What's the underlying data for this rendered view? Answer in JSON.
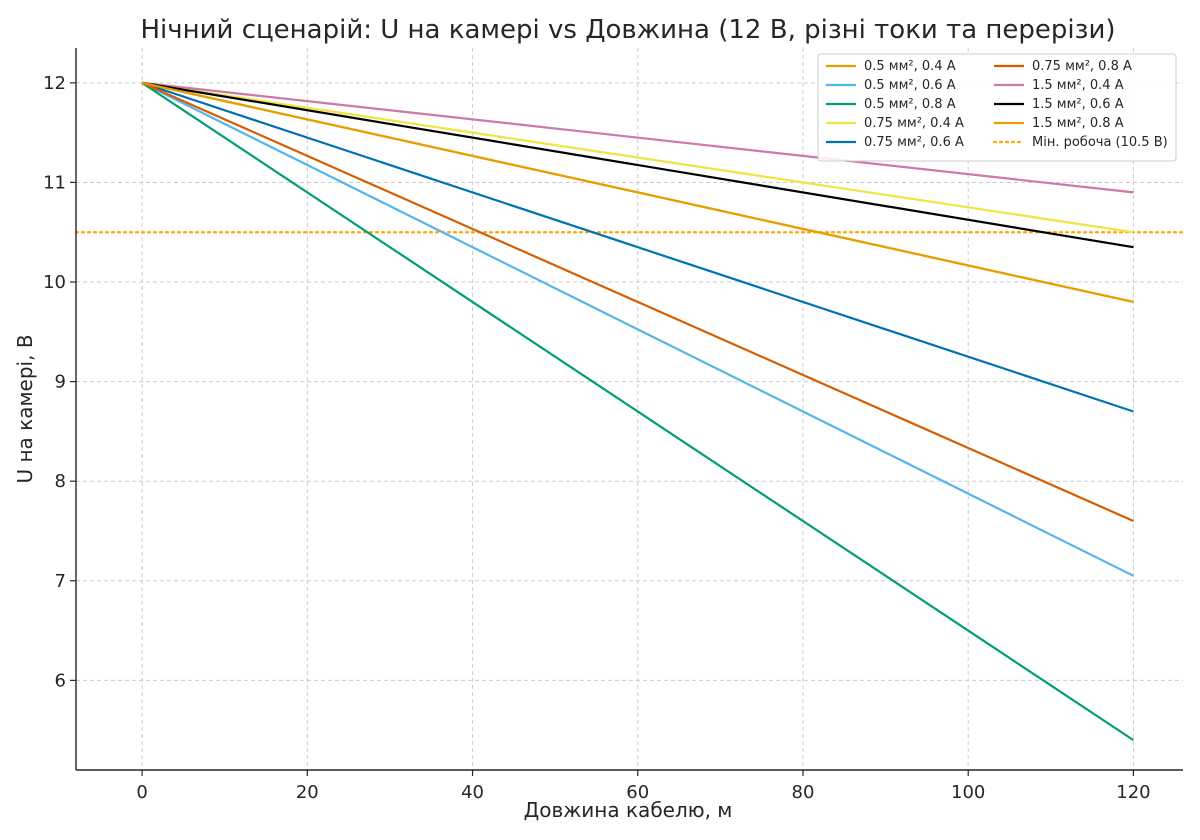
{
  "chart_data": {
    "type": "line",
    "title": "Нічний сценарій: U на камері vs Довжина (12 В, різні токи та перерізи)",
    "xlabel": "Довжина кабелю, м",
    "ylabel": "U на камері, В",
    "xlim": [
      -8,
      126
    ],
    "ylim": [
      5.1,
      12.35
    ],
    "xticks": [
      0,
      20,
      40,
      60,
      80,
      100,
      120
    ],
    "yticks": [
      6,
      7,
      8,
      9,
      10,
      11,
      12
    ],
    "x": [
      0,
      120
    ],
    "grid": true,
    "legend_position": "top-right",
    "series": [
      {
        "name": "0.5 мм², 0.4 А",
        "color": "#E69F00",
        "values": [
          12.0,
          9.8
        ]
      },
      {
        "name": "0.5 мм², 0.6 А",
        "color": "#56B4E9",
        "values": [
          12.0,
          7.05
        ]
      },
      {
        "name": "0.5 мм², 0.8 А",
        "color": "#009E73",
        "values": [
          12.0,
          5.4
        ]
      },
      {
        "name": "0.75 мм², 0.4 А",
        "color": "#F0E442",
        "values": [
          12.0,
          10.5
        ]
      },
      {
        "name": "0.75 мм², 0.6 А",
        "color": "#0072B2",
        "values": [
          12.0,
          8.7
        ]
      },
      {
        "name": "0.75 мм², 0.8 А",
        "color": "#D55E00",
        "values": [
          12.0,
          7.6
        ]
      },
      {
        "name": "1.5 мм², 0.4 А",
        "color": "#CC79A7",
        "values": [
          12.0,
          10.9
        ]
      },
      {
        "name": "1.5 мм², 0.6 А",
        "color": "#000000",
        "values": [
          12.0,
          10.35
        ]
      },
      {
        "name": "1.5 мм², 0.8 А",
        "color": "#E69F00",
        "values": [
          12.0,
          9.8
        ]
      }
    ],
    "reference_lines": [
      {
        "name": "Мін. робоча (10.5 В)",
        "y": 10.5,
        "color": "#FFA500",
        "style": "dotted"
      }
    ]
  }
}
